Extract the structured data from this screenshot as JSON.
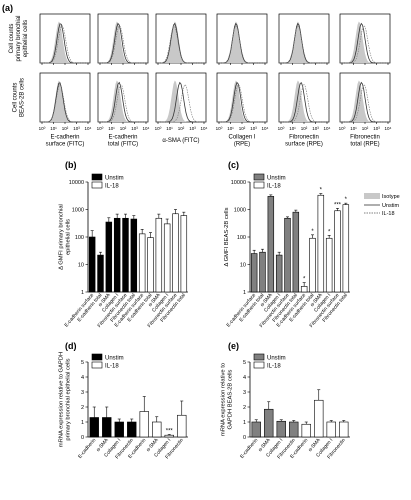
{
  "panel_letters": [
    "(a)",
    "(b)",
    "(c)",
    "(d)",
    "(e)"
  ],
  "histogram_grid": {
    "row_labels": [
      "Cell counts\nprimary bronchial\nepithelial cells",
      "Cell counts\nBEAS-2B cells"
    ],
    "column_labels": [
      "E-cadherin\nsurface (FITC)",
      "E-cadherin\ntotal (FITC)",
      "α-SMA (FITC)",
      "Collagen I\n(RPE)",
      "Fibronectin\nsurface (RPE)",
      "Fibronectin\ntotal (RPE)"
    ],
    "x_ticks": [
      "10⁰",
      "10¹",
      "10²",
      "10³",
      "10⁴"
    ],
    "legend": [
      "Isotype",
      "Unstim",
      "IL-18"
    ]
  },
  "chart_data": [
    {
      "id": "b",
      "type": "bar",
      "ylabel": "Δ GMFI primary bronchial\nepithelial cells",
      "y_scale": "log",
      "ylim": [
        1,
        10000
      ],
      "y_ticks": [
        "1",
        "10",
        "100",
        "1000",
        "10000"
      ],
      "legend": [
        "Unstim",
        "IL-18"
      ],
      "categories": [
        "E-cadherin surface",
        "E-cadherin total",
        "α-SMA",
        "Collagen I",
        "Fibronectin surface",
        "Fibronectin total",
        "E-cadherin surface",
        "E-cadherin total",
        "α-SMA",
        "Collagen I",
        "Fibronectin surface",
        "Fibronectin total"
      ],
      "series": [
        {
          "name": "Unstim",
          "color": "#000000",
          "values": [
            100,
            22,
            350,
            480,
            480,
            450,
            null,
            null,
            null,
            null,
            null,
            null
          ],
          "errors": [
            70,
            6,
            150,
            200,
            200,
            150,
            null,
            null,
            null,
            null,
            null,
            null
          ]
        },
        {
          "name": "IL-18",
          "color": "#ffffff",
          "values": [
            null,
            null,
            null,
            null,
            null,
            null,
            130,
            95,
            480,
            300,
            700,
            600
          ],
          "errors": [
            null,
            null,
            null,
            null,
            null,
            null,
            60,
            50,
            200,
            150,
            300,
            200
          ]
        }
      ],
      "significance": []
    },
    {
      "id": "c",
      "type": "bar",
      "ylabel": "Δ GMFI BEAS-2B cells",
      "y_scale": "log",
      "ylim": [
        1,
        10000
      ],
      "y_ticks": [
        "1",
        "10",
        "100",
        "1000",
        "10000"
      ],
      "legend": [
        "Unstim",
        "IL-18"
      ],
      "categories": [
        "E-cadherin surface",
        "E-cadherin total",
        "α-SMA",
        "Collagen I",
        "Fibronectin surface",
        "Fibronectin total",
        "E-cadherin surface",
        "E-cadherin total",
        "α-SMA",
        "Collagen I",
        "Fibronectin surface",
        "Fibronectin total"
      ],
      "series": [
        {
          "name": "Unstim",
          "color": "#808080",
          "values": [
            25,
            28,
            3000,
            22,
            480,
            800,
            null,
            null,
            null,
            null,
            null,
            null
          ],
          "errors": [
            8,
            8,
            400,
            6,
            60,
            150,
            null,
            null,
            null,
            null,
            null,
            null
          ]
        },
        {
          "name": "IL-18",
          "color": "#ffffff",
          "values": [
            null,
            null,
            null,
            null,
            null,
            null,
            1.6,
            90,
            3300,
            90,
            900,
            1500
          ],
          "errors": [
            null,
            null,
            null,
            null,
            null,
            null,
            0.6,
            30,
            500,
            25,
            200,
            200
          ]
        }
      ],
      "significance": [
        "*",
        "*",
        "*",
        "*",
        "***",
        "*"
      ]
    },
    {
      "id": "d",
      "type": "bar",
      "ylabel": "mRNA expression relative to GAPDH\nprimary bronchial epithelial cells",
      "ylim": [
        0,
        5
      ],
      "y_ticks": [
        "0",
        "1",
        "2",
        "3",
        "4",
        "5"
      ],
      "legend": [
        "Unstim",
        "IL-18"
      ],
      "categories": [
        "E-cadherin",
        "α-SMA",
        "Collagen I",
        "Fibronectin",
        "E-cadherin",
        "α-SMA",
        "Collagen I",
        "Fibronectin"
      ],
      "series": [
        {
          "name": "Unstim",
          "color": "#000000",
          "values": [
            1.3,
            1.3,
            1.0,
            1.0,
            null,
            null,
            null,
            null
          ],
          "errors": [
            0.7,
            0.7,
            0.2,
            0.2,
            null,
            null,
            null,
            null
          ]
        },
        {
          "name": "IL-18",
          "color": "#ffffff",
          "values": [
            null,
            null,
            null,
            null,
            1.7,
            1.0,
            0.12,
            1.45
          ],
          "errors": [
            null,
            null,
            null,
            null,
            1.0,
            0.35,
            0.05,
            0.95
          ]
        }
      ],
      "significance": [
        "***"
      ]
    },
    {
      "id": "e",
      "type": "bar",
      "ylabel": "mRNA expression relative to\nGAPDH BEAS-2B cells",
      "ylim": [
        0,
        5
      ],
      "y_ticks": [
        "0",
        "1",
        "2",
        "3",
        "4",
        "5"
      ],
      "legend": [
        "Unstim",
        "IL-18"
      ],
      "categories": [
        "E-cadherin",
        "α-SMA",
        "Collagen I",
        "Fibronectin",
        "E-cadherin",
        "α-SMA",
        "Collagen I",
        "Fibronectin"
      ],
      "series": [
        {
          "name": "Unstim",
          "color": "#808080",
          "values": [
            1.0,
            1.85,
            1.05,
            1.0,
            null,
            null,
            null,
            null
          ],
          "errors": [
            0.15,
            0.5,
            0.1,
            0.1,
            null,
            null,
            null,
            null
          ]
        },
        {
          "name": "IL-18",
          "color": "#ffffff",
          "values": [
            null,
            null,
            null,
            null,
            0.85,
            2.45,
            1.0,
            1.0
          ],
          "errors": [
            null,
            null,
            null,
            null,
            0.15,
            0.7,
            0.1,
            0.1
          ]
        }
      ],
      "significance": []
    }
  ]
}
